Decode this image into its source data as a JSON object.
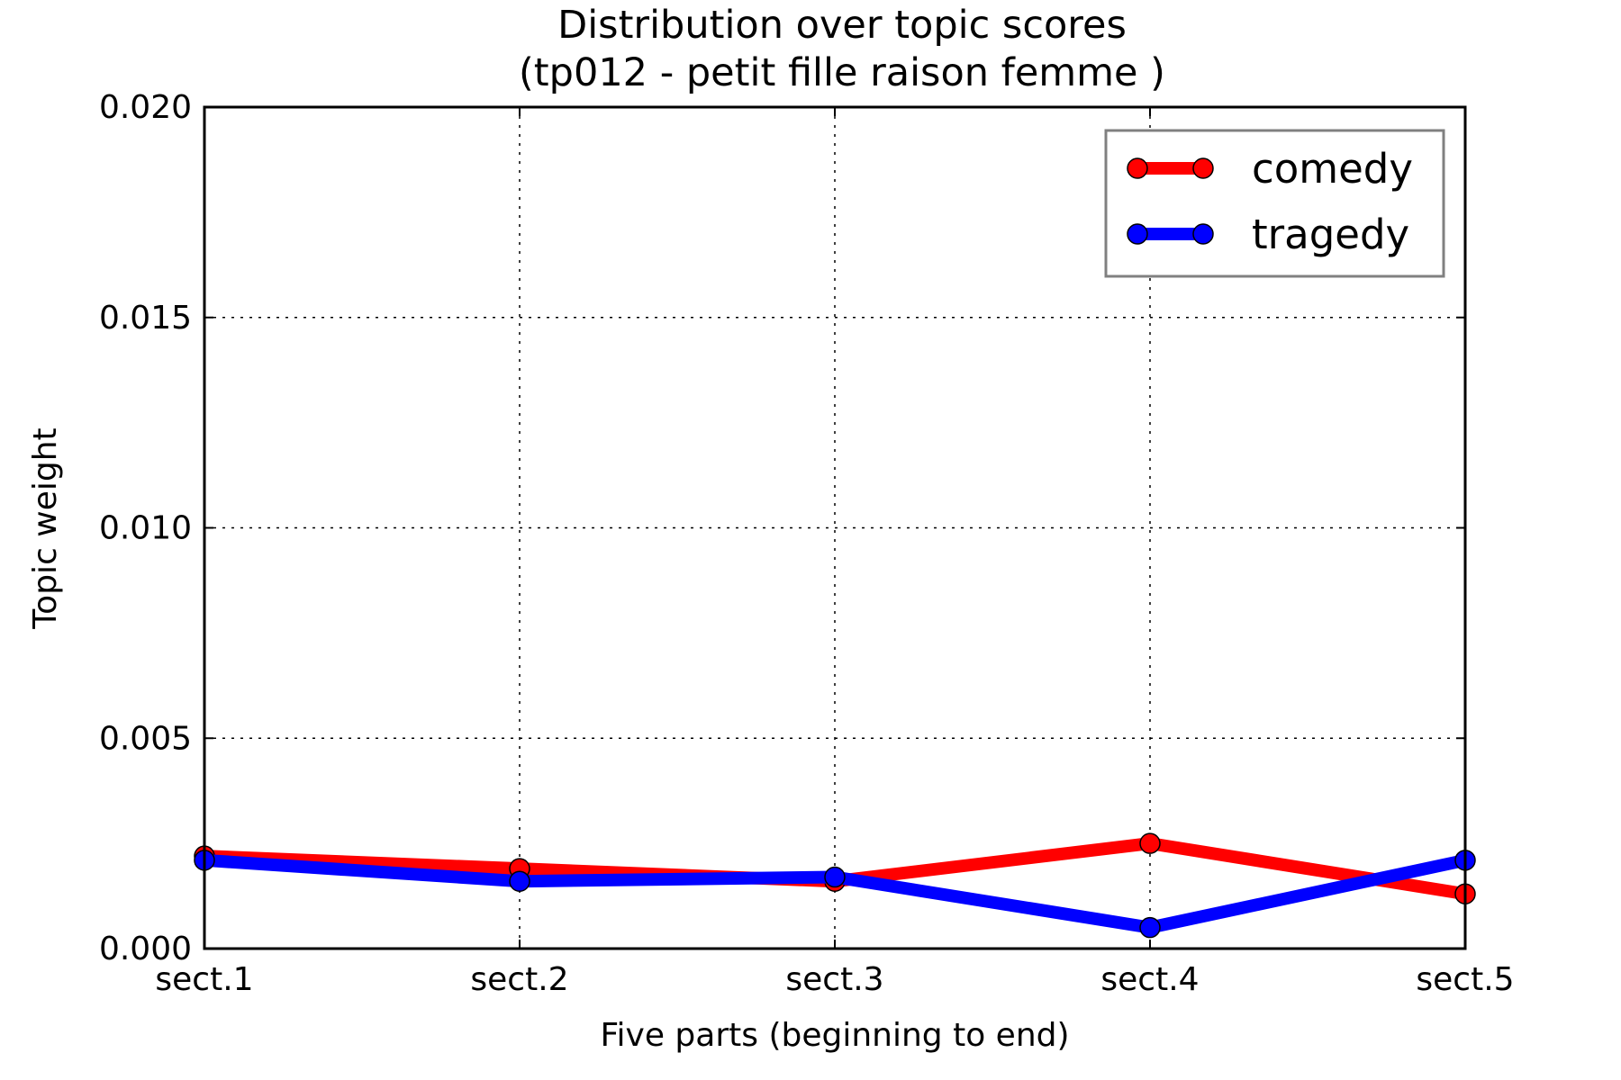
{
  "chart_data": {
    "type": "line",
    "title": "Distribution over topic scores",
    "subtitle": "(tp012 - petit fille raison femme )",
    "xlabel": "Five parts (beginning to end)",
    "ylabel": "Topic weight",
    "categories": [
      "sect.1",
      "sect.2",
      "sect.3",
      "sect.4",
      "sect.5"
    ],
    "ylim": [
      0.0,
      0.02
    ],
    "yticks": [
      "0.000",
      "0.005",
      "0.010",
      "0.015",
      "0.020"
    ],
    "grid": true,
    "legend_position": "top-right",
    "series": [
      {
        "name": "comedy",
        "color": "#ff0000",
        "values": [
          0.0022,
          0.0019,
          0.0016,
          0.0025,
          0.0013
        ]
      },
      {
        "name": "tragedy",
        "color": "#0000ff",
        "values": [
          0.0021,
          0.0016,
          0.0017,
          0.0005,
          0.0021
        ]
      }
    ]
  }
}
